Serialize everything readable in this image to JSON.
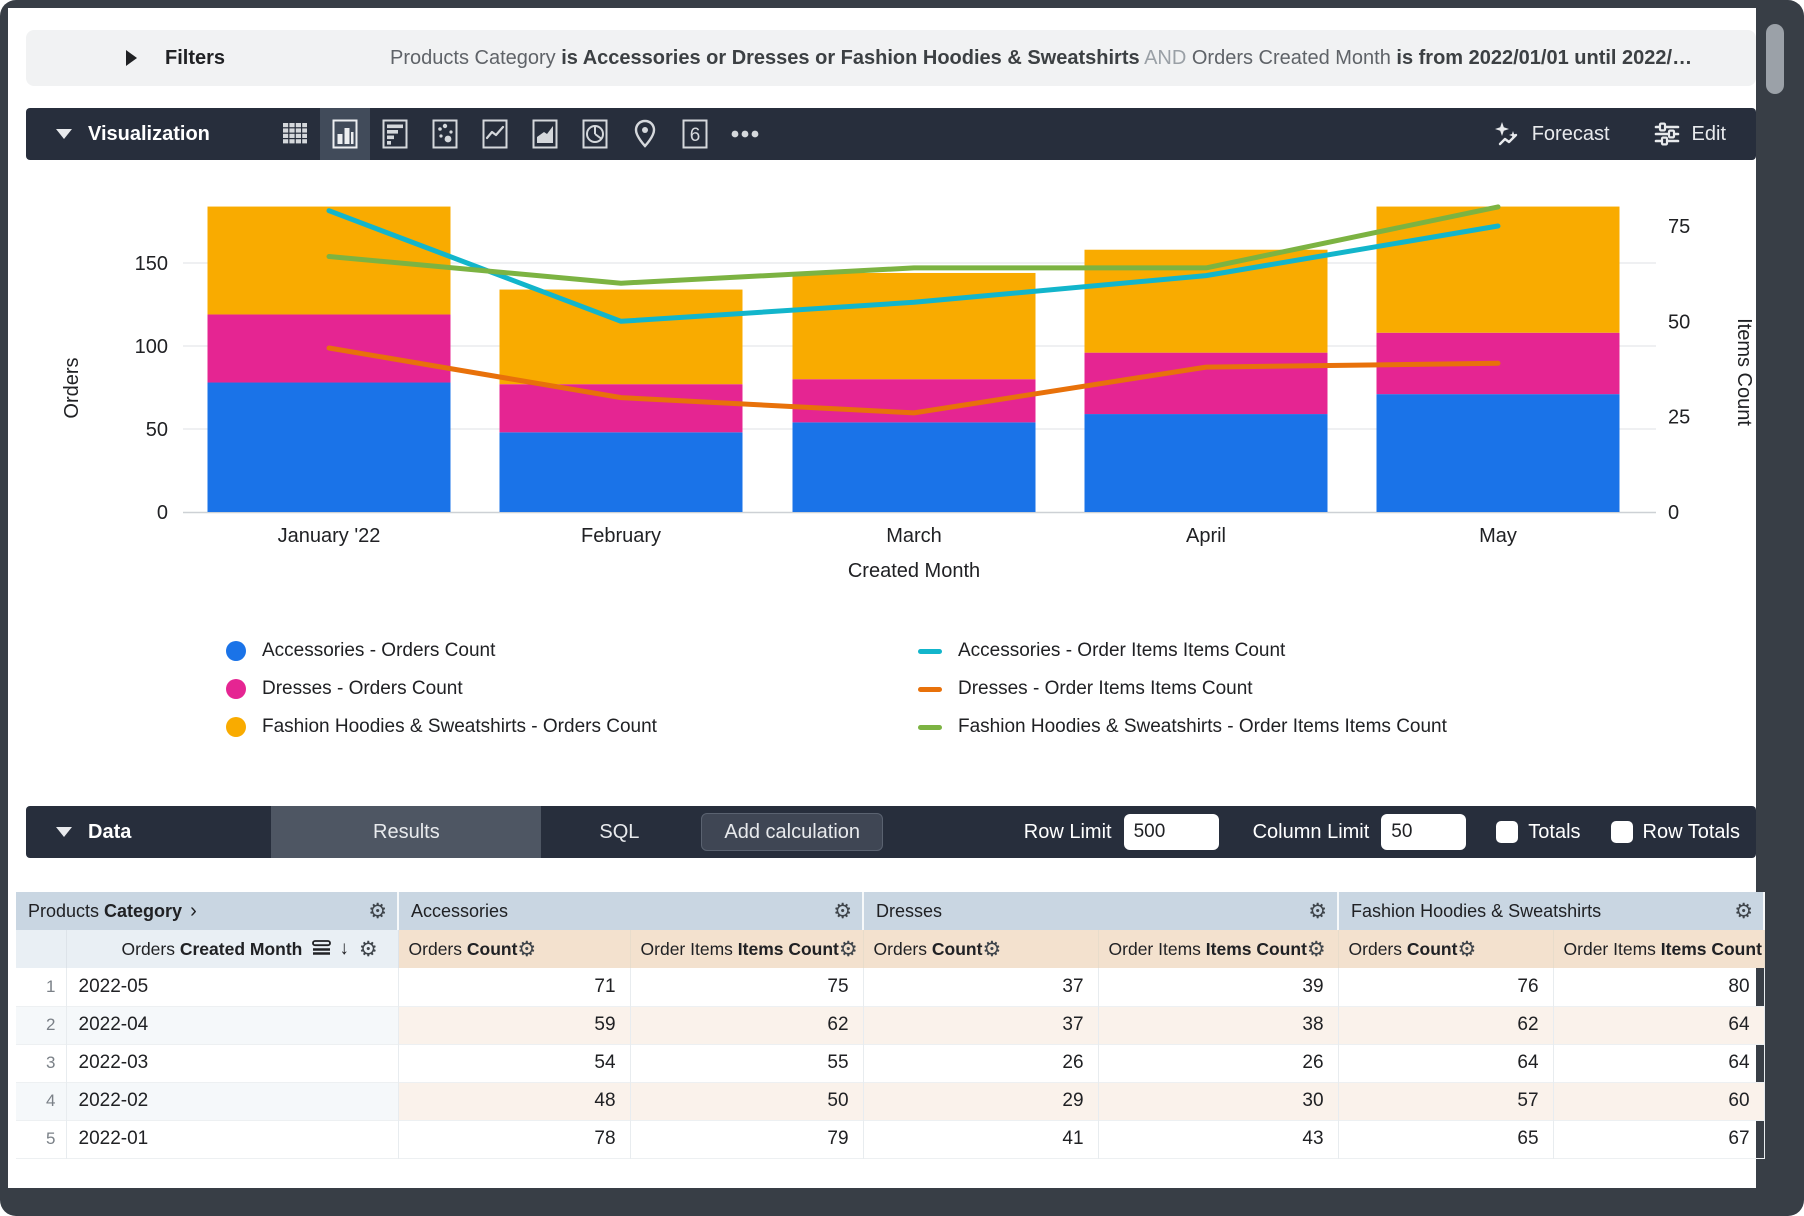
{
  "filters_bar": {
    "title": "Filters",
    "segments": [
      {
        "text": "Products Category ",
        "style": "dim"
      },
      {
        "text": "is Accessories or Dresses or Fashion Hoodies & Sweatshirts",
        "style": "bold"
      },
      {
        "text": " AND ",
        "style": "and"
      },
      {
        "text": "Orders Created Month ",
        "style": "dim"
      },
      {
        "text": "is from 2022/01/01 until 2022/…",
        "style": "bold"
      }
    ]
  },
  "viz_toolbar": {
    "title": "Visualization",
    "icons": [
      "table",
      "column-chart",
      "bar-chart",
      "scatter-chart",
      "line-chart",
      "area-chart",
      "pie-chart",
      "map",
      "single-value",
      "more"
    ],
    "selected_icon": "column-chart",
    "single_value_glyph": "6",
    "forecast_label": "Forecast",
    "edit_label": "Edit"
  },
  "chart_data": {
    "type": "combo-stacked-bar-and-line",
    "categories": [
      "January '22",
      "February",
      "March",
      "April",
      "May"
    ],
    "x_axis_label": "Created Month",
    "left_axis": {
      "label": "Orders",
      "ticks": [
        0,
        50,
        100,
        150
      ],
      "range": [
        0,
        212
      ]
    },
    "right_axis": {
      "label": "Items Count",
      "ticks": [
        0,
        25,
        50,
        75
      ],
      "range": [
        0,
        92.5
      ]
    },
    "bar_series": [
      {
        "name": "Accessories - Orders Count",
        "color": "#1A73E8",
        "values": [
          78,
          48,
          54,
          59,
          71
        ]
      },
      {
        "name": "Dresses - Orders Count",
        "color": "#E52592",
        "values": [
          41,
          29,
          26,
          37,
          37
        ]
      },
      {
        "name": "Fashion Hoodies & Sweatshirts - Orders Count",
        "color": "#F9AB00",
        "values": [
          65,
          57,
          64,
          62,
          76
        ]
      }
    ],
    "line_series": [
      {
        "name": "Accessories - Order Items Items Count",
        "color": "#12B5CB",
        "values": [
          79,
          50,
          55,
          62,
          75
        ]
      },
      {
        "name": "Dresses - Order Items Items Count",
        "color": "#E8710A",
        "values": [
          43,
          30,
          26,
          38,
          39
        ]
      },
      {
        "name": "Fashion Hoodies & Sweatshirts - Order Items Items Count",
        "color": "#7CB342",
        "values": [
          67,
          60,
          64,
          64,
          80
        ]
      }
    ],
    "grid": true,
    "legend_position": "bottom-two-columns"
  },
  "data_toolbar": {
    "title": "Data",
    "tabs": [
      {
        "label": "Results",
        "selected": true
      },
      {
        "label": "SQL",
        "selected": false
      }
    ],
    "add_calculation_label": "Add calculation",
    "row_limit": {
      "label": "Row Limit",
      "value": "500"
    },
    "column_limit": {
      "label": "Column Limit",
      "value": "50"
    },
    "totals_label": "Totals",
    "row_totals_label": "Row Totals",
    "totals_checked": false,
    "row_totals_checked": false
  },
  "table": {
    "dimension_group": {
      "regular": "Products",
      "bold": "Category",
      "chevron": "›"
    },
    "dimension_subheader": {
      "regular": "Orders",
      "bold": "Created Month"
    },
    "measure_groups": [
      "Accessories",
      "Dresses",
      "Fashion Hoodies & Sweatshirts"
    ],
    "measure_subheaders": [
      {
        "regular": "Orders",
        "bold": "Count"
      },
      {
        "regular": "Order Items",
        "bold": "Items Count"
      }
    ],
    "gear_glyph": "⚙",
    "rows": [
      {
        "num": "1",
        "month": "2022-05",
        "values": [
          71,
          75,
          37,
          39,
          76,
          80
        ]
      },
      {
        "num": "2",
        "month": "2022-04",
        "values": [
          59,
          62,
          37,
          38,
          62,
          64
        ]
      },
      {
        "num": "3",
        "month": "2022-03",
        "values": [
          54,
          55,
          26,
          26,
          64,
          64
        ]
      },
      {
        "num": "4",
        "month": "2022-02",
        "values": [
          48,
          50,
          29,
          30,
          57,
          60
        ]
      },
      {
        "num": "5",
        "month": "2022-01",
        "values": [
          78,
          79,
          41,
          43,
          65,
          67
        ]
      }
    ]
  }
}
